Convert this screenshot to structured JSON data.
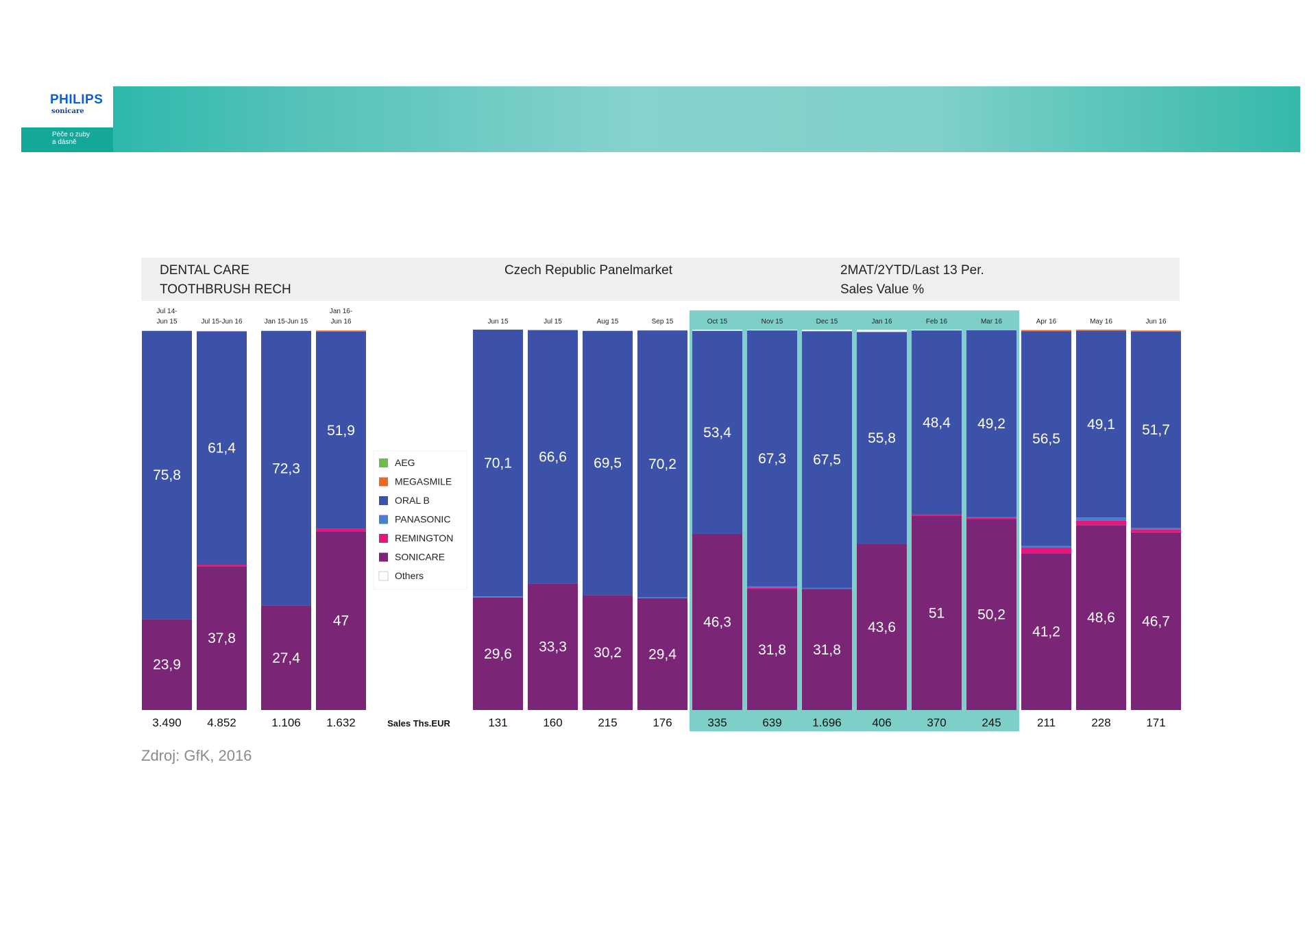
{
  "banner": {
    "brand": "PHILIPS",
    "product": "sonicare",
    "tagline": "Péče o zuby\na dásně"
  },
  "chart_data": {
    "type": "bar",
    "stacked": true,
    "header": {
      "left_line1": "DENTAL CARE",
      "left_line2": "TOOTHBRUSH RECH",
      "center": "Czech Republic Panelmarket",
      "right_line1": "2MAT/2YTD/Last 13 Per.",
      "right_line2": "Sales Value %"
    },
    "ylim": [
      0,
      100
    ],
    "categories": [
      [
        "Jul 14-",
        "Jun 15"
      ],
      [
        "Jul 15-Jun 16"
      ],
      [
        "Jan 15-Jun 15"
      ],
      [
        "Jan 16-",
        "Jun 16"
      ],
      [
        "Jun 15"
      ],
      [
        "Jul 15"
      ],
      [
        "Aug 15"
      ],
      [
        "Sep 15"
      ],
      [
        "Oct 15"
      ],
      [
        "Nov 15"
      ],
      [
        "Dec 15"
      ],
      [
        "Jan 16"
      ],
      [
        "Feb 16"
      ],
      [
        "Mar 16"
      ],
      [
        "Apr 16"
      ],
      [
        "May 16"
      ],
      [
        "Jun 16"
      ]
    ],
    "highlighted_categories": [
      "Oct 15",
      "Nov 15",
      "Dec 15",
      "Jan 16",
      "Feb 16",
      "Mar 16"
    ],
    "series": [
      {
        "name": "SONICARE",
        "color": "#7b2577",
        "values": [
          23.9,
          37.8,
          27.4,
          47,
          29.6,
          33.3,
          30.2,
          29.4,
          46.3,
          31.8,
          31.8,
          43.6,
          51,
          50.2,
          41.2,
          48.6,
          46.7
        ]
      },
      {
        "name": "REMINGTON",
        "color": "#e2187c",
        "values": [
          0,
          0.4,
          0,
          0.6,
          0,
          0,
          0,
          0,
          0,
          0.3,
          0,
          0,
          0.4,
          0.3,
          1.5,
          1.2,
          0.8
        ]
      },
      {
        "name": "PANASONIC",
        "color": "#4a7fc9",
        "values": [
          0,
          0,
          0,
          0,
          0.3,
          0,
          0,
          0.2,
          0,
          0.4,
          0.3,
          0,
          0,
          0.2,
          0.4,
          0.8,
          0.3
        ]
      },
      {
        "name": "ORAL B",
        "color": "#3c52a8",
        "values": [
          75.8,
          61.4,
          72.3,
          51.9,
          70.1,
          66.6,
          69.5,
          70.2,
          53.4,
          67.3,
          67.5,
          55.8,
          48.4,
          49.2,
          56.5,
          49.1,
          51.7
        ]
      },
      {
        "name": "MEGASMILE",
        "color": "#e86b25",
        "values": [
          0,
          0,
          0,
          0.3,
          0,
          0,
          0,
          0,
          0,
          0,
          0,
          0,
          0,
          0,
          0.3,
          0.2,
          0.3
        ]
      },
      {
        "name": "AEG",
        "color": "#6cbd45",
        "values": [
          0,
          0,
          0,
          0,
          0,
          0,
          0,
          0,
          0,
          0,
          0,
          0,
          0,
          0,
          0,
          0.1,
          0
        ]
      },
      {
        "name": "Others",
        "color": "#ffffff",
        "values": [
          0.3,
          0.4,
          0.3,
          0.2,
          0,
          0.1,
          0.3,
          0.2,
          0.3,
          0.2,
          0.4,
          0.6,
          0.2,
          0.1,
          0.1,
          0,
          0.2
        ]
      }
    ],
    "labeled_series": [
      "SONICARE",
      "ORAL B"
    ],
    "label_values": {
      "SONICARE": [
        "23,9",
        "37,8",
        "27,4",
        "47",
        "29,6",
        "33,3",
        "30,2",
        "29,4",
        "46,3",
        "31,8",
        "31,8",
        "43,6",
        "51",
        "50,2",
        "41,2",
        "48,6",
        "46,7"
      ],
      "ORAL B": [
        "75,8",
        "61,4",
        "72,3",
        "51,9",
        "70,1",
        "66,6",
        "69,5",
        "70,2",
        "53,4",
        "67,3",
        "67,5",
        "55,8",
        "48,4",
        "49,2",
        "56,5",
        "49,1",
        "51,7"
      ]
    },
    "sales_label": "Sales Ths.EUR",
    "sales": [
      "3.490",
      "4.852",
      "1.106",
      "1.632",
      "131",
      "160",
      "215",
      "176",
      "335",
      "639",
      "1.696",
      "406",
      "370",
      "245",
      "211",
      "228",
      "171"
    ],
    "legend": [
      "AEG",
      "MEGASMILE",
      "ORAL B",
      "PANASONIC",
      "REMINGTON",
      "SONICARE",
      "Others"
    ],
    "highlight_color": "#7ecfc8"
  },
  "source": "Zdroj: GfK, 2016"
}
